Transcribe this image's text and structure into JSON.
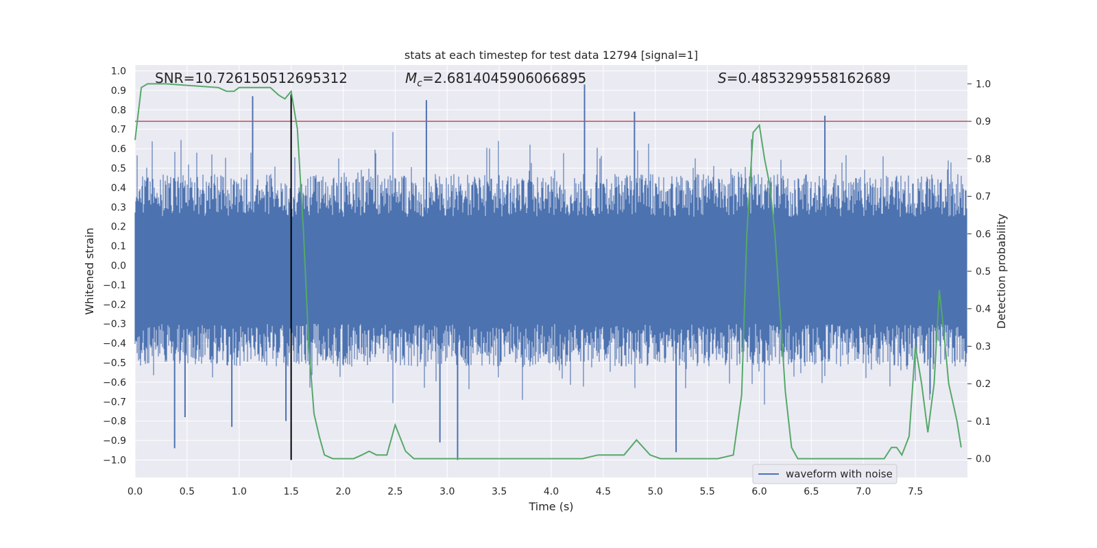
{
  "chart_data": {
    "type": "line",
    "title": "stats at each timestep for test data 12794 [signal=1]",
    "xlabel": "Time (s)",
    "ylabel_left": "Whitened strain",
    "ylabel_right": "Detection probability",
    "xlim": [
      0.0,
      8.0
    ],
    "ylim_left": [
      -1.09,
      1.03
    ],
    "ylim_right": [
      -0.05,
      1.05
    ],
    "x_ticks": [
      "0.0",
      "0.5",
      "1.0",
      "1.5",
      "2.0",
      "2.5",
      "3.0",
      "3.5",
      "4.0",
      "4.5",
      "5.0",
      "5.5",
      "6.0",
      "6.5",
      "7.0",
      "7.5"
    ],
    "y_left_ticks": [
      "1.0",
      "0.9",
      "0.8",
      "0.7",
      "0.6",
      "0.5",
      "0.4",
      "0.3",
      "0.2",
      "0.1",
      "0.0",
      "-0.1",
      "-0.2",
      "-0.3",
      "-0.4",
      "-0.5",
      "-0.6",
      "-0.7",
      "-0.8",
      "-0.9",
      "-1.0"
    ],
    "y_right_ticks": [
      "1.0",
      "0.9",
      "0.8",
      "0.7",
      "0.6",
      "0.5",
      "0.4",
      "0.3",
      "0.2",
      "0.1",
      "0.0"
    ],
    "grid": true,
    "annotations": {
      "snr": "SNR=10.726150512695312",
      "mc_symbol": "M",
      "mc_subscript": "c",
      "mc_value": "=2.6814045906066895",
      "s_symbol": "S",
      "s_value": "=0.4853299558162689"
    },
    "threshold": 0.9,
    "marker_time": 1.5,
    "marker_range": [
      -1.0,
      0.88
    ],
    "legend": {
      "label": "waveform with noise",
      "placement": "lower-right"
    },
    "colors": {
      "background": "#eaeaf2",
      "grid": "#ffffff",
      "waveform": "#4c72b0",
      "probability": "#55a868",
      "threshold": "#c44e52",
      "marker": "#000000"
    },
    "waveform_envelope": {
      "band_upper": 0.25,
      "band_lower": -0.3,
      "spikes": [
        {
          "t": 0.38,
          "v": -0.94
        },
        {
          "t": 0.48,
          "v": -0.78
        },
        {
          "t": 0.93,
          "v": -0.83
        },
        {
          "t": 1.13,
          "v": 0.87
        },
        {
          "t": 1.45,
          "v": -0.8
        },
        {
          "t": 2.8,
          "v": 0.85
        },
        {
          "t": 2.93,
          "v": -0.91
        },
        {
          "t": 3.1,
          "v": -1.0
        },
        {
          "t": 4.32,
          "v": 0.93
        },
        {
          "t": 4.8,
          "v": 0.79
        },
        {
          "t": 5.2,
          "v": -0.96
        },
        {
          "t": 6.63,
          "v": 0.77
        }
      ]
    },
    "series": [
      {
        "name": "detection probability",
        "axis": "right",
        "x": [
          0.0,
          0.06,
          0.12,
          0.3,
          0.8,
          0.88,
          0.95,
          1.0,
          1.2,
          1.3,
          1.38,
          1.44,
          1.5,
          1.56,
          1.62,
          1.67,
          1.72,
          1.77,
          1.82,
          1.9,
          2.0,
          2.1,
          2.18,
          2.25,
          2.32,
          2.42,
          2.5,
          2.6,
          2.68,
          2.78,
          2.9,
          3.0,
          3.3,
          3.5,
          3.7,
          4.0,
          4.3,
          4.45,
          4.55,
          4.7,
          4.82,
          4.95,
          5.05,
          5.15,
          5.3,
          5.6,
          5.75,
          5.83,
          5.88,
          5.94,
          6.0,
          6.05,
          6.1,
          6.15,
          6.25,
          6.31,
          6.37,
          6.43,
          6.6,
          6.9,
          7.05,
          7.2,
          7.27,
          7.32,
          7.37,
          7.44,
          7.5,
          7.56,
          7.62,
          7.68,
          7.73,
          7.78,
          7.82,
          7.86,
          7.9,
          7.94
        ],
        "values": [
          0.85,
          0.99,
          1.0,
          1.0,
          0.99,
          0.98,
          0.98,
          0.99,
          0.99,
          0.99,
          0.97,
          0.96,
          0.98,
          0.88,
          0.6,
          0.3,
          0.12,
          0.06,
          0.01,
          0.0,
          0.0,
          0.0,
          0.01,
          0.02,
          0.01,
          0.01,
          0.09,
          0.02,
          0.0,
          0.0,
          0.0,
          0.0,
          0.0,
          0.0,
          0.0,
          0.0,
          0.0,
          0.01,
          0.01,
          0.01,
          0.05,
          0.01,
          0.0,
          0.0,
          0.0,
          0.0,
          0.01,
          0.17,
          0.6,
          0.87,
          0.89,
          0.8,
          0.73,
          0.6,
          0.18,
          0.03,
          0.0,
          0.0,
          0.0,
          0.0,
          0.0,
          0.0,
          0.03,
          0.03,
          0.01,
          0.06,
          0.3,
          0.2,
          0.07,
          0.2,
          0.45,
          0.32,
          0.2,
          0.15,
          0.1,
          0.03
        ]
      }
    ]
  }
}
